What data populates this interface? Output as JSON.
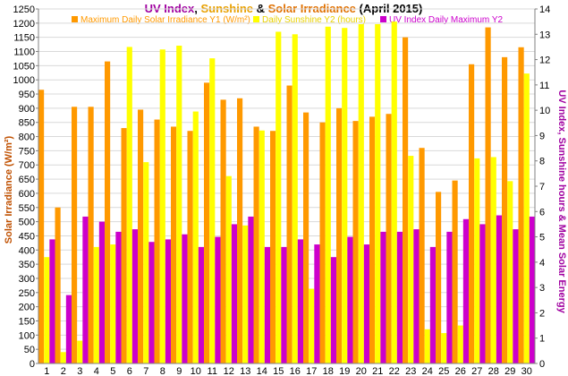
{
  "chart_data": {
    "type": "bar",
    "title_parts": [
      {
        "text": "UV Index",
        "color": "#a000a0"
      },
      {
        "text": ", ",
        "color": "#000000"
      },
      {
        "text": "Sunshine",
        "color": "#e8a000"
      },
      {
        "text": " & ",
        "color": "#000000"
      },
      {
        "text": "Solar Irradiance",
        "color": "#e07000"
      },
      {
        "text": " (April 2015)",
        "color": "#000000"
      }
    ],
    "ylabel_left": "Solar Irradiance (W/m²)",
    "ylabel_right": "UV Index, Sunshine hours & Mean Solar Energy",
    "categories": [
      "1",
      "2",
      "3",
      "4",
      "5",
      "6",
      "7",
      "8",
      "9",
      "10",
      "11",
      "12",
      "13",
      "14",
      "15",
      "16",
      "17",
      "18",
      "19",
      "20",
      "21",
      "22",
      "23",
      "24",
      "25",
      "26",
      "27",
      "28",
      "29",
      "30"
    ],
    "y_left_lim": [
      0,
      1250
    ],
    "y_left_ticks": [
      "0",
      "50",
      "100",
      "150",
      "200",
      "250",
      "300",
      "350",
      "400",
      "450",
      "500",
      "550",
      "600",
      "650",
      "700",
      "750",
      "800",
      "850",
      "900",
      "950",
      "1000",
      "1050",
      "1100",
      "1150",
      "1200",
      "1250"
    ],
    "y_right_lim": [
      0,
      14
    ],
    "y_right_ticks": [
      "0",
      "1",
      "2",
      "3",
      "4",
      "5",
      "6",
      "7",
      "8",
      "9",
      "10",
      "11",
      "12",
      "13",
      "14"
    ],
    "legend_placement": "top",
    "series": [
      {
        "name": "Maximum Daily Solar Irradiance Y1 (W/m²)",
        "axis": "left",
        "color": "#ff9900",
        "values": [
          965,
          550,
          905,
          905,
          1065,
          830,
          895,
          860,
          835,
          820,
          990,
          930,
          935,
          835,
          820,
          980,
          885,
          850,
          900,
          855,
          870,
          880,
          1150,
          760,
          605,
          645,
          1055,
          1185,
          1080,
          1115
        ]
      },
      {
        "name": "Daily Sunshine Y2 (hours)",
        "axis": "right",
        "color": "#ffff00",
        "values": [
          4.2,
          0.45,
          0.9,
          4.6,
          4.7,
          12.5,
          7.95,
          12.4,
          12.55,
          9.95,
          12.05,
          7.4,
          5.45,
          9.2,
          13.1,
          13.0,
          2.95,
          13.3,
          13.25,
          13.4,
          13.4,
          13.5,
          8.2,
          1.35,
          1.2,
          1.5,
          8.1,
          8.15,
          7.2,
          11.45
        ]
      },
      {
        "name": "UV Index Daily Maximum Y2",
        "axis": "right",
        "color": "#cc00cc",
        "values": [
          4.9,
          2.7,
          5.8,
          5.6,
          5.2,
          5.3,
          4.8,
          4.9,
          5.1,
          4.6,
          5.0,
          5.5,
          5.8,
          4.6,
          4.6,
          4.9,
          4.7,
          4.2,
          5.0,
          4.7,
          5.2,
          5.2,
          5.3,
          4.6,
          5.2,
          5.7,
          5.5,
          5.85,
          5.3,
          5.8
        ]
      }
    ]
  },
  "colors": {
    "left_axis_label": "#c05000",
    "right_axis_label": "#a000a0",
    "grid": "#d9d9d9"
  }
}
